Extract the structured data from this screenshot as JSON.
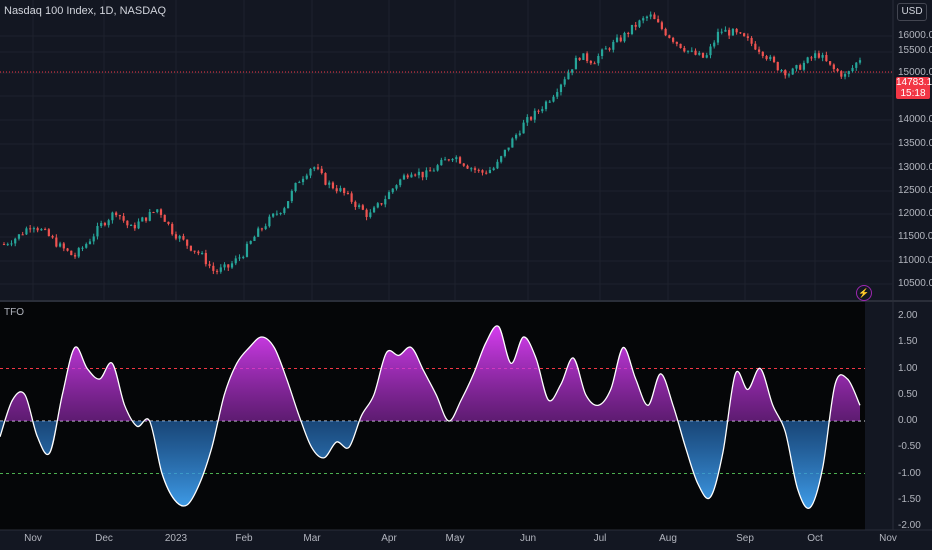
{
  "header": {
    "symbol_title": "Nasdaq 100 Index, 1D, NASDAQ",
    "currency": "USD"
  },
  "indicator": {
    "name": "TFO"
  },
  "price_axis": {
    "ticks": [
      "16000.00",
      "15500.00",
      "15000.00",
      "14000.00",
      "13500.00",
      "13000.00",
      "12500.00",
      "12000.00",
      "11500.00",
      "11000.00",
      "10500.00"
    ]
  },
  "last_price": {
    "value": "14783.13",
    "countdown": "15:18"
  },
  "osc_axis": {
    "ticks": [
      "2.00",
      "1.50",
      "1.00",
      "0.50",
      "0.00",
      "-0.50",
      "-1.00",
      "-1.50",
      "-2.00"
    ]
  },
  "time_axis": {
    "ticks": [
      "Nov",
      "Dec",
      "2023",
      "Feb",
      "Mar",
      "Apr",
      "May",
      "Jun",
      "Jul",
      "Aug",
      "Sep",
      "Oct",
      "Nov"
    ]
  },
  "colors": {
    "up": "#26a69a",
    "down": "#ef5350",
    "osc_pos": "#e040fb",
    "osc_neg": "#42a5f5",
    "upper_level": "#f23645",
    "lower_level": "#4caf50"
  },
  "chart_data": [
    {
      "type": "candlestick",
      "title": "Nasdaq 100 Index, 1D, NASDAQ",
      "ylim": [
        10300,
        16200
      ],
      "close_series": [
        11400,
        11550,
        11800,
        11600,
        11350,
        11150,
        11450,
        11800,
        12050,
        11700,
        11900,
        12100,
        11650,
        11400,
        11200,
        10850,
        10950,
        11200,
        11600,
        11900,
        12150,
        12650,
        12950,
        12600,
        12450,
        12200,
        11950,
        12250,
        12600,
        12850,
        12750,
        12950,
        13150,
        12950,
        12800,
        12900,
        13350,
        13750,
        14000,
        14300,
        14700,
        15100,
        15000,
        15250,
        15450,
        15700,
        15900,
        15600,
        15350,
        15150,
        15050,
        15600,
        15550,
        15400,
        15200,
        14900,
        14750,
        14950,
        15150,
        14850,
        14700,
        15050
      ]
    },
    {
      "type": "area",
      "title": "TFO",
      "ylim": [
        -2.0,
        2.0
      ],
      "levels": [
        1.0,
        0.0,
        -1.0
      ],
      "values": [
        -0.3,
        0.4,
        0.5,
        -0.3,
        -0.6,
        0.5,
        1.4,
        1.0,
        0.8,
        1.1,
        0.3,
        -0.1,
        0.0,
        -1.0,
        -1.5,
        -1.6,
        -1.2,
        -0.5,
        0.5,
        1.1,
        1.4,
        1.6,
        1.4,
        0.8,
        0.1,
        -0.5,
        -0.7,
        -0.4,
        -0.5,
        0.1,
        0.5,
        1.3,
        1.25,
        1.4,
        0.95,
        0.5,
        0.0,
        0.4,
        0.9,
        1.5,
        1.8,
        1.1,
        1.6,
        1.2,
        0.4,
        0.7,
        1.2,
        0.5,
        0.3,
        0.6,
        1.4,
        0.8,
        0.3,
        0.9,
        0.3,
        -0.5,
        -1.2,
        -1.45,
        -0.6,
        0.9,
        0.6,
        1.0,
        0.3,
        -0.2,
        -1.3,
        -1.65,
        -0.9,
        0.7,
        0.8,
        0.3
      ]
    }
  ]
}
